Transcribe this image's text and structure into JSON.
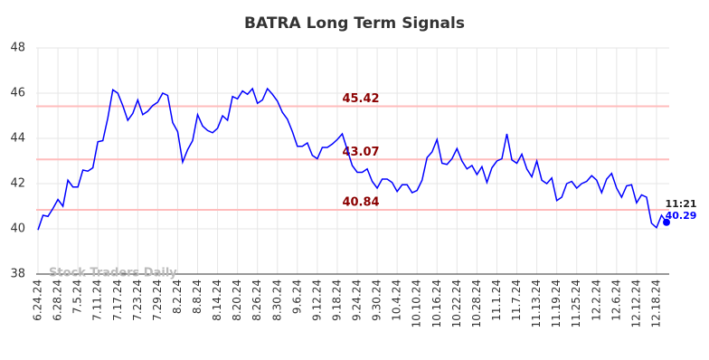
{
  "chart_data": {
    "type": "line",
    "title": "BATRA Long Term Signals",
    "watermark": "Stock Traders Daily",
    "categories": [
      "6.24.24",
      null,
      null,
      null,
      "6.28.24",
      null,
      null,
      null,
      "7.5.24",
      null,
      null,
      null,
      "7.11.24",
      null,
      null,
      null,
      "7.17.24",
      null,
      null,
      null,
      "7.23.24",
      null,
      null,
      null,
      "7.29.24",
      null,
      null,
      null,
      "8.2.24",
      null,
      null,
      null,
      "8.8.24",
      null,
      null,
      null,
      "8.14.24",
      null,
      null,
      null,
      "8.20.24",
      null,
      null,
      null,
      "8.26.24",
      null,
      null,
      null,
      "8.30.24",
      null,
      null,
      null,
      "9.6.24",
      null,
      null,
      null,
      "9.12.24",
      null,
      null,
      null,
      "9.18.24",
      null,
      null,
      null,
      "9.24.24",
      null,
      null,
      null,
      "9.30.24",
      null,
      null,
      null,
      "10.4.24",
      null,
      null,
      null,
      "10.10.24",
      null,
      null,
      null,
      "10.16.24",
      null,
      null,
      null,
      "10.22.24",
      null,
      null,
      null,
      "10.28.24",
      null,
      null,
      null,
      "11.1.24",
      null,
      null,
      null,
      "11.7.24",
      null,
      null,
      null,
      "11.13.24",
      null,
      null,
      null,
      "11.19.24",
      null,
      null,
      null,
      "11.25.24",
      null,
      null,
      null,
      "12.2.24",
      null,
      null,
      null,
      "12.6.24",
      null,
      null,
      null,
      "12.12.24",
      null,
      null,
      null,
      "12.18.24",
      null,
      null
    ],
    "values": [
      39.95,
      40.6,
      40.55,
      40.9,
      41.3,
      41.0,
      42.15,
      41.85,
      41.85,
      42.6,
      42.55,
      42.7,
      43.85,
      43.9,
      44.9,
      46.15,
      46.0,
      45.45,
      44.8,
      45.1,
      45.7,
      45.05,
      45.2,
      45.45,
      45.6,
      46.0,
      45.9,
      44.7,
      44.3,
      42.95,
      43.5,
      43.9,
      45.05,
      44.55,
      44.35,
      44.25,
      44.45,
      45.0,
      44.8,
      45.85,
      45.75,
      46.1,
      45.95,
      46.2,
      45.55,
      45.7,
      46.2,
      45.95,
      45.65,
      45.15,
      44.85,
      44.3,
      43.65,
      43.65,
      43.8,
      43.25,
      43.1,
      43.6,
      43.6,
      43.75,
      43.95,
      44.2,
      43.5,
      42.8,
      42.5,
      42.5,
      42.65,
      42.1,
      41.8,
      42.2,
      42.2,
      42.05,
      41.65,
      41.95,
      41.95,
      41.6,
      41.7,
      42.15,
      43.15,
      43.4,
      43.95,
      42.9,
      42.85,
      43.1,
      43.55,
      43.0,
      42.65,
      42.8,
      42.4,
      42.75,
      42.05,
      42.7,
      43.0,
      43.1,
      44.2,
      43.05,
      42.9,
      43.3,
      42.65,
      42.3,
      43.0,
      42.15,
      42.0,
      42.25,
      41.25,
      41.4,
      42.0,
      42.1,
      41.8,
      42.0,
      42.1,
      42.35,
      42.15,
      41.6,
      42.2,
      42.45,
      41.8,
      41.4,
      41.9,
      41.95,
      41.15,
      41.5,
      41.4,
      40.25,
      40.05,
      40.6,
      40.29
    ],
    "color": "#0000ff",
    "levels": [
      45.42,
      43.07,
      40.84
    ],
    "level_color": "#ffbcbc",
    "level_label_color": "#8b0000",
    "last_time": "11:21",
    "ylim": [
      38,
      48
    ],
    "yticks": [
      38,
      40,
      42,
      44,
      46,
      48
    ],
    "grid": true
  }
}
